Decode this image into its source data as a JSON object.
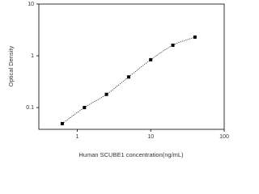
{
  "chart_data": {
    "type": "scatter",
    "x_label": "Human SCUBE1 concentration(ng/mL)",
    "y_label": "Optical Density",
    "x": [
      0.625,
      1.25,
      2.5,
      5,
      10,
      20,
      40
    ],
    "series": [
      {
        "color": "#000000",
        "values": [
          0.049,
          0.1,
          0.18,
          0.39,
          0.84,
          1.6,
          2.3
        ]
      }
    ],
    "xlim": [
      0.3,
      100
    ],
    "ylim": [
      0.038,
      10
    ],
    "xticks": [
      1,
      10,
      100
    ],
    "yticks": [
      0.1,
      1,
      10
    ],
    "xscale": "log",
    "yscale": "log",
    "fit_line": true
  }
}
